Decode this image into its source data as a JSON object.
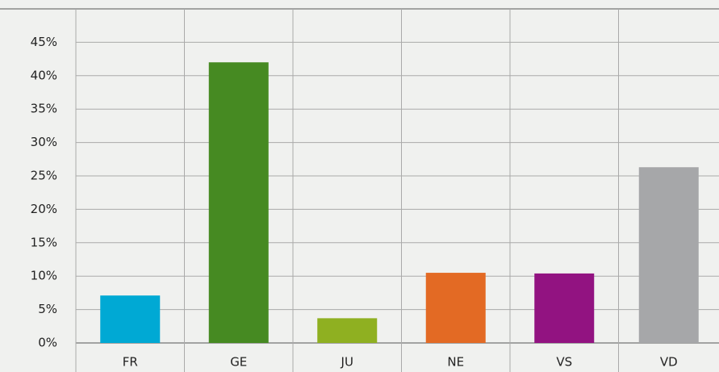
{
  "chart_data": {
    "type": "bar",
    "categories": [
      "FR",
      "GE",
      "JU",
      "NE",
      "VS",
      "VD"
    ],
    "values": [
      7.1,
      42.0,
      3.7,
      10.5,
      10.4,
      26.3
    ],
    "colors": [
      "#00a9d4",
      "#468a22",
      "#8fb021",
      "#e36a24",
      "#921381",
      "#a6a7a9"
    ],
    "ylim": [
      0,
      50
    ],
    "yticks": [
      {
        "value": 0,
        "label": "0%"
      },
      {
        "value": 5,
        "label": "5%"
      },
      {
        "value": 10,
        "label": "10%"
      },
      {
        "value": 15,
        "label": "15%"
      },
      {
        "value": 20,
        "label": "20%"
      },
      {
        "value": 25,
        "label": "25%"
      },
      {
        "value": 30,
        "label": "30%"
      },
      {
        "value": 35,
        "label": "35%"
      },
      {
        "value": 40,
        "label": "40%"
      },
      {
        "value": 45,
        "label": "45%"
      }
    ],
    "grid": true
  }
}
